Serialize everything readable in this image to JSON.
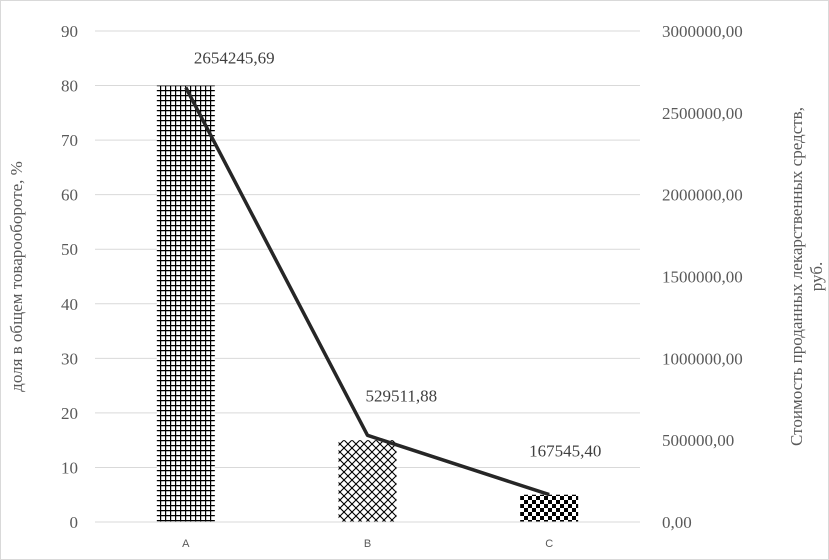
{
  "chart_data": {
    "type": "bar",
    "categories": [
      "A",
      "B",
      "C"
    ],
    "bars": {
      "values": [
        80,
        15,
        5
      ],
      "axis": "left",
      "patterns": [
        "grid",
        "diagonal-cross",
        "checker"
      ]
    },
    "line": {
      "values": [
        2654245.69,
        529511.88,
        167545.4
      ],
      "labels": [
        "2654245,69",
        "529511,88",
        "167545,40"
      ],
      "axis": "right",
      "color": "#262626"
    },
    "y_left": {
      "label": "доля в общем товарообороте, %",
      "ylim": [
        0,
        90
      ],
      "ticks": [
        0,
        10,
        20,
        30,
        40,
        50,
        60,
        70,
        80,
        90
      ],
      "tick_labels": [
        "0",
        "10",
        "20",
        "30",
        "40",
        "50",
        "60",
        "70",
        "80",
        "90"
      ]
    },
    "y_right": {
      "label_line1": "Стоимость проданных лекарственных средств,",
      "label_line2": "руб.",
      "ylim": [
        0,
        3000000
      ],
      "ticks": [
        0,
        500000,
        1000000,
        1500000,
        2000000,
        2500000,
        3000000
      ],
      "tick_labels": [
        "0,00",
        "500000,00",
        "1000000,00",
        "1500000,00",
        "2000000,00",
        "2500000,00",
        "3000000,00"
      ]
    },
    "grid": true,
    "grid_color": "#d9d9d9",
    "bar_color": "#000000"
  }
}
